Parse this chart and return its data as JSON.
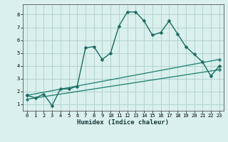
{
  "title": "",
  "xlabel": "Humidex (Indice chaleur)",
  "bg_color": "#d9f0ed",
  "grid_color": "#aececa",
  "line_color": "#1a6b60",
  "line_color2": "#2a8878",
  "main_x": [
    0,
    1,
    2,
    3,
    4,
    5,
    6,
    7,
    8,
    9,
    10,
    11,
    12,
    13,
    14,
    15,
    16,
    17,
    18,
    19,
    20,
    21,
    22,
    23
  ],
  "main_y": [
    1.7,
    1.5,
    1.8,
    0.9,
    2.2,
    2.2,
    2.4,
    5.4,
    5.5,
    4.5,
    5.0,
    7.1,
    8.2,
    8.2,
    7.5,
    6.4,
    6.6,
    7.5,
    6.5,
    5.5,
    4.9,
    4.3,
    3.2,
    4.0
  ],
  "line2_x": [
    0,
    23
  ],
  "line2_y": [
    1.7,
    4.5
  ],
  "line3_x": [
    0,
    23
  ],
  "line3_y": [
    1.4,
    3.7
  ],
  "xlim": [
    -0.5,
    23.5
  ],
  "ylim": [
    0.5,
    8.8
  ],
  "xticks": [
    0,
    1,
    2,
    3,
    4,
    5,
    6,
    7,
    8,
    9,
    10,
    11,
    12,
    13,
    14,
    15,
    16,
    17,
    18,
    19,
    20,
    21,
    22,
    23
  ],
  "yticks": [
    1,
    2,
    3,
    4,
    5,
    6,
    7,
    8
  ],
  "tick_fontsize": 5.0,
  "xlabel_fontsize": 6.5,
  "marker_size": 2.5,
  "linewidth": 1.0
}
